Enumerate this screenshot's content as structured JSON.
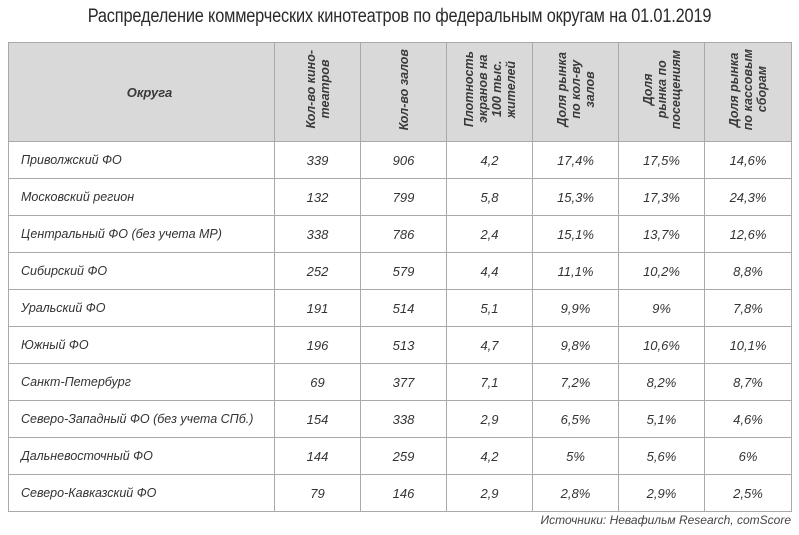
{
  "title": "Распределение коммерческих кинотеатров по федеральным округам на 01.01.2019",
  "table": {
    "headers": [
      "Округа",
      "Кол-во кино-\nтеатров",
      "Кол-во залов",
      "Плотность\nэкранов на\n100 тыс.\nжителей",
      "Доля рынка\nпо кол-ву\nзалов",
      "Доля\nрынка по\nпосещениям",
      "Доля рынка\nпо кассовым\nсборам"
    ],
    "rows": [
      [
        "Приволжский ФО",
        "339",
        "906",
        "4,2",
        "17,4%",
        "17,5%",
        "14,6%"
      ],
      [
        "Московский регион",
        "132",
        "799",
        "5,8",
        "15,3%",
        "17,3%",
        "24,3%"
      ],
      [
        "Центральный ФО (без учета МР)",
        "338",
        "786",
        "2,4",
        "15,1%",
        "13,7%",
        "12,6%"
      ],
      [
        "Сибирский ФО",
        "252",
        "579",
        "4,4",
        "11,1%",
        "10,2%",
        "8,8%"
      ],
      [
        "Уральский ФО",
        "191",
        "514",
        "5,1",
        "9,9%",
        "9%",
        "7,8%"
      ],
      [
        "Южный ФО",
        "196",
        "513",
        "4,7",
        "9,8%",
        "10,6%",
        "10,1%"
      ],
      [
        "Санкт-Петербург",
        "69",
        "377",
        "7,1",
        "7,2%",
        "8,2%",
        "8,7%"
      ],
      [
        "Северо-Западный ФО (без учета СПб.)",
        "154",
        "338",
        "2,9",
        "6,5%",
        "5,1%",
        "4,6%"
      ],
      [
        "Дальневосточный ФО",
        "144",
        "259",
        "4,2",
        "5%",
        "5,6%",
        "6%"
      ],
      [
        "Северо-Кавказский ФО",
        "79",
        "146",
        "2,9",
        "2,8%",
        "2,9%",
        "2,5%"
      ]
    ]
  },
  "source": "Источники: Невафильм Research, comScore"
}
